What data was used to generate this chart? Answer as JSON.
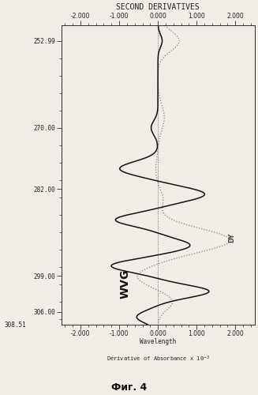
{
  "title": "SECOND DERIVATIVES",
  "xlabel": "Wavelength",
  "fig_label": "Фиг. 4",
  "bottom_xlabel": "Derivative of Absorbance x 10",
  "xlim": [
    -2.5,
    2.5
  ],
  "ylim": [
    308.51,
    250.0
  ],
  "xticks": [
    -2.0,
    -1.0,
    0.0,
    1.0,
    2.0
  ],
  "yticks": [
    252.99,
    270.0,
    282.0,
    299.0,
    306.0
  ],
  "ytick_labels": [
    "252.99",
    "270.00",
    "282.00",
    "299.00",
    "306.00"
  ],
  "bottom_ytick_label": "308.51",
  "label_WVG": "WVG",
  "label_DY": "DY",
  "bg_color": "#f0ede6",
  "line1_color": "#111111",
  "line2_color": "#777777"
}
